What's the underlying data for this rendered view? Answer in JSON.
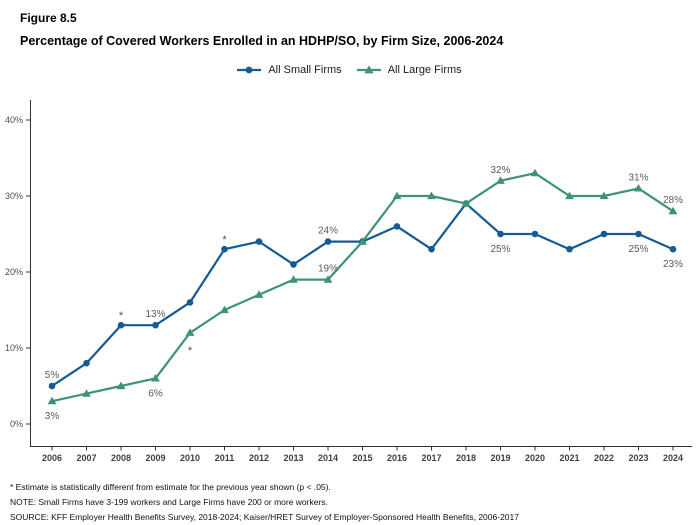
{
  "figure": {
    "label": "Figure 8.5",
    "title": "Percentage of Covered Workers Enrolled in an HDHP/SO, by Firm Size, 2006-2024"
  },
  "legend": {
    "items": [
      {
        "label": "All Small Firms",
        "color": "#145A93",
        "marker": "circle"
      },
      {
        "label": "All Large Firms",
        "color": "#3E9276",
        "marker": "triangle"
      }
    ]
  },
  "chart_data": {
    "type": "line",
    "title": "Percentage of Covered Workers Enrolled in an HDHP/SO, by Firm Size, 2006-2024",
    "x": [
      2006,
      2007,
      2008,
      2009,
      2010,
      2011,
      2012,
      2013,
      2014,
      2015,
      2016,
      2017,
      2018,
      2019,
      2020,
      2021,
      2022,
      2023,
      2024
    ],
    "series": [
      {
        "name": "All Small Firms",
        "key": "small",
        "color": "#145A93",
        "marker": "circle",
        "values": [
          5,
          8,
          13,
          13,
          16,
          23,
          24,
          21,
          24,
          24,
          26,
          23,
          29,
          25,
          25,
          23,
          25,
          25,
          23
        ]
      },
      {
        "name": "All Large Firms",
        "key": "large",
        "color": "#3E9276",
        "marker": "triangle",
        "values": [
          3,
          4,
          5,
          6,
          12,
          15,
          17,
          19,
          19,
          24,
          30,
          30,
          29,
          32,
          33,
          30,
          30,
          31,
          28
        ]
      }
    ],
    "ylim": [
      0,
      42
    ],
    "yticks": [
      0,
      10,
      20,
      30,
      40
    ],
    "ytick_suffix": "%",
    "grid": false,
    "legend_position": "top",
    "point_labels": [
      {
        "series": "small",
        "year": 2006,
        "text": "5%",
        "placement": "above"
      },
      {
        "series": "large",
        "year": 2006,
        "text": "3%",
        "placement": "below"
      },
      {
        "series": "small",
        "year": 2009,
        "text": "13%",
        "placement": "above"
      },
      {
        "series": "large",
        "year": 2009,
        "text": "6%",
        "placement": "below"
      },
      {
        "series": "small",
        "year": 2014,
        "text": "24%",
        "placement": "above"
      },
      {
        "series": "large",
        "year": 2014,
        "text": "19%",
        "placement": "above"
      },
      {
        "series": "small",
        "year": 2019,
        "text": "25%",
        "placement": "below"
      },
      {
        "series": "large",
        "year": 2019,
        "text": "32%",
        "placement": "above"
      },
      {
        "series": "small",
        "year": 2023,
        "text": "25%",
        "placement": "below"
      },
      {
        "series": "large",
        "year": 2023,
        "text": "31%",
        "placement": "above"
      },
      {
        "series": "small",
        "year": 2024,
        "text": "23%",
        "placement": "below"
      },
      {
        "series": "large",
        "year": 2024,
        "text": "28%",
        "placement": "above"
      }
    ],
    "significance_markers": [
      {
        "series": "small",
        "year": 2008,
        "symbol": "*",
        "placement": "above"
      },
      {
        "series": "large",
        "year": 2010,
        "symbol": "*",
        "placement": "below"
      },
      {
        "series": "small",
        "year": 2011,
        "symbol": "*",
        "placement": "above"
      }
    ]
  },
  "footnotes": {
    "significance": "* Estimate is statistically different from estimate for the previous year shown (p < .05).",
    "note": "NOTE: Small Firms have 3-199 workers and Large Firms have 200 or more workers.",
    "source": "SOURCE: KFF Employer Health Benefits Survey, 2018-2024; Kaiser/HRET Survey of Employer-Sponsored Health Benefits, 2006-2017"
  }
}
